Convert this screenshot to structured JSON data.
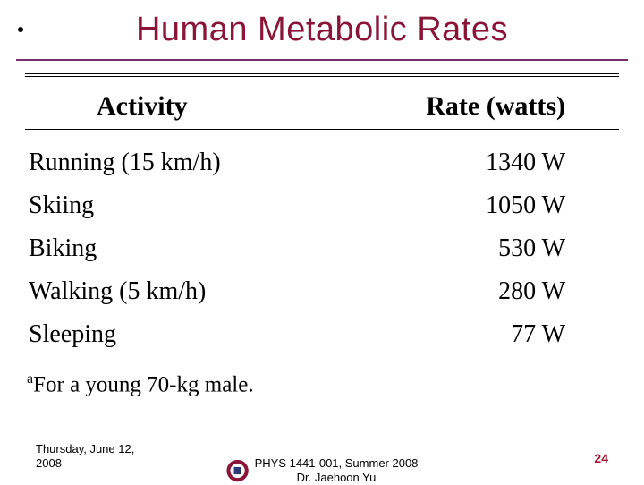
{
  "title": {
    "text": "Human Metabolic Rates",
    "color": "#8a1538"
  },
  "hr_color": "#7a2e6e",
  "table": {
    "header_activity": "Activity",
    "header_rate": "Rate (watts)",
    "rows": [
      {
        "activity": "Running (15 km/h)",
        "rate": "1340 W"
      },
      {
        "activity": "Skiing",
        "rate": "1050 W"
      },
      {
        "activity": "Biking",
        "rate": "530 W"
      },
      {
        "activity": "Walking (5 km/h)",
        "rate": "280 W"
      },
      {
        "activity": "Sleeping",
        "rate": "77 W"
      }
    ],
    "footnote_marker": "a",
    "footnote_text": "For a young 70-kg male."
  },
  "footer": {
    "date_line1": "Thursday, June 12,",
    "date_line2": "2008",
    "course_line1": "PHYS 1441-001, Summer 2008",
    "course_line2": "Dr. Jaehoon Yu",
    "page": "24",
    "page_color": "#a01830",
    "logo_colors": {
      "outer": "#8a1538",
      "inner": "#ffffff",
      "accent": "#2a3a7a"
    }
  }
}
